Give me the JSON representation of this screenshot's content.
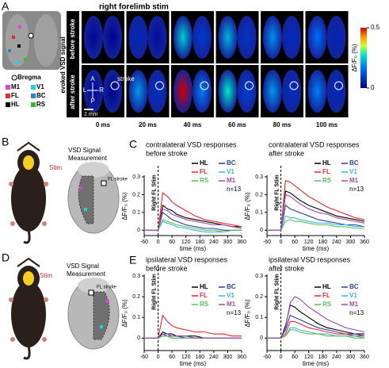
{
  "figure": {
    "panel_a": {
      "label": "A",
      "title": "right forelimb stim",
      "side_label": "evoked VSD signal",
      "row_labels": [
        "before stroke",
        "after stroke"
      ],
      "times": [
        "0 ms",
        "20 ms",
        "40 ms",
        "60 ms",
        "80 ms",
        "100 ms"
      ],
      "legend": [
        "Bregma",
        "M1",
        "V1",
        "FL",
        "BC",
        "HL",
        "RS"
      ],
      "colorbar": {
        "lim": [
          0,
          0.5
        ],
        "ticks": [
          0,
          0.5
        ],
        "label": "ΔF/F₀ (%)"
      },
      "stroke": "stroke",
      "scale": "2 mm",
      "axes": [
        "A",
        "P",
        "L",
        "R"
      ]
    },
    "panel_b": {
      "label": "B",
      "stim": "Stim",
      "measure": [
        "VSD Signal",
        "Measurement"
      ],
      "stroke": "FL stroke"
    },
    "panel_c": {
      "label": "C"
    },
    "panel_d": {
      "label": "D",
      "stim": "Stim",
      "measure": [
        "VSD Signal",
        "Measurement"
      ],
      "stroke": "FL stroke"
    },
    "panel_e": {
      "label": "E"
    }
  },
  "chart_data": [
    {
      "type": "line",
      "title": "contralateral VSD responses",
      "subtitle": "before stroke",
      "x_label": "time (ms)",
      "y_label": "ΔF/F₀ (%)",
      "stim_label": "Right FL Stim",
      "sample_size": "n=13",
      "x": [
        -60,
        -30,
        0,
        20,
        40,
        60,
        80,
        120,
        160,
        200,
        240,
        280,
        320,
        360
      ],
      "xlim": [
        -60,
        360
      ],
      "xticks": [
        -60,
        0,
        60,
        120,
        180,
        240,
        300,
        360
      ],
      "ylim": [
        -0.03,
        0.3
      ],
      "yticks": [
        0,
        0.1,
        0.2,
        0.3
      ],
      "series": [
        {
          "name": "HL",
          "color": "#000000",
          "values": [
            0,
            0,
            0,
            0.14,
            0.12,
            0.11,
            0.09,
            0.07,
            0.06,
            0.05,
            0.04,
            0.03,
            0.02,
            0.02
          ]
        },
        {
          "name": "BC",
          "color": "#2b3f9e",
          "values": [
            0,
            0,
            0,
            0.1,
            0.08,
            0.06,
            0.05,
            0.03,
            0.02,
            0.01,
            0.01,
            0,
            0,
            0
          ]
        },
        {
          "name": "FL",
          "color": "#e8262b",
          "values": [
            0,
            0,
            0,
            0.21,
            0.19,
            0.16,
            0.14,
            0.11,
            0.08,
            0.06,
            0.05,
            0.04,
            0.03,
            0.02
          ]
        },
        {
          "name": "V1",
          "color": "#3bb6e0",
          "values": [
            0,
            0,
            0,
            0.05,
            0.04,
            0.03,
            0.02,
            0.01,
            0,
            -0.01,
            -0.01,
            -0.01,
            0,
            0
          ]
        },
        {
          "name": "RS",
          "color": "#5cbf5a",
          "values": [
            0,
            0,
            0,
            0.06,
            0.05,
            0.04,
            0.03,
            0.02,
            0.01,
            0,
            0,
            -0.01,
            0,
            0
          ]
        },
        {
          "name": "M1",
          "color": "#a24aa8",
          "values": [
            0,
            0,
            0,
            0.12,
            0.11,
            0.09,
            0.08,
            0.06,
            0.05,
            0.04,
            0.03,
            0.03,
            0.02,
            0.01
          ]
        }
      ]
    },
    {
      "type": "line",
      "title": "contralateral VSD responses",
      "subtitle": "after stroke",
      "x_label": "time (ms)",
      "y_label": "ΔF/F₀ (%)",
      "stim_label": "Right FL Stim",
      "sample_size": "n=13",
      "x": [
        -60,
        -30,
        0,
        20,
        40,
        60,
        80,
        120,
        160,
        200,
        240,
        280,
        320,
        360
      ],
      "xlim": [
        -60,
        360
      ],
      "xticks": [
        -60,
        0,
        60,
        120,
        180,
        240,
        300,
        360
      ],
      "ylim": [
        -0.03,
        0.3
      ],
      "yticks": [
        0,
        0.1,
        0.2,
        0.3
      ],
      "series": [
        {
          "name": "HL",
          "color": "#000000",
          "values": [
            0,
            0,
            0,
            0.22,
            0.21,
            0.19,
            0.17,
            0.14,
            0.12,
            0.1,
            0.08,
            0.07,
            0.06,
            0.05
          ]
        },
        {
          "name": "BC",
          "color": "#2b3f9e",
          "values": [
            0,
            0,
            0,
            0.14,
            0.12,
            0.11,
            0.1,
            0.08,
            0.06,
            0.05,
            0.04,
            0.03,
            0.03,
            0.02
          ]
        },
        {
          "name": "FL",
          "color": "#e8262b",
          "values": [
            0,
            0,
            0,
            0.28,
            0.27,
            0.25,
            0.23,
            0.19,
            0.16,
            0.13,
            0.11,
            0.09,
            0.07,
            0.06
          ]
        },
        {
          "name": "V1",
          "color": "#3bb6e0",
          "values": [
            0,
            0,
            0,
            0.08,
            0.07,
            0.07,
            0.06,
            0.05,
            0.04,
            0.04,
            0.03,
            0.03,
            0.02,
            0.02
          ]
        },
        {
          "name": "RS",
          "color": "#5cbf5a",
          "values": [
            0,
            0,
            0,
            0.05,
            0.06,
            0.05,
            0.05,
            0.04,
            0.03,
            0.03,
            0.02,
            0.02,
            0.01,
            0.01
          ]
        },
        {
          "name": "M1",
          "color": "#a24aa8",
          "values": [
            0,
            0,
            0,
            0.2,
            0.19,
            0.17,
            0.15,
            0.12,
            0.1,
            0.09,
            0.07,
            0.06,
            0.05,
            0.04
          ]
        }
      ]
    },
    {
      "type": "line",
      "title": "ipsilateral VSD responses",
      "subtitle": "before stroke",
      "x_label": "time (ms)",
      "y_label": "ΔF/F₀ (%)",
      "stim_label": "Right FL Stim",
      "sample_size": "n=13",
      "x": [
        -60,
        -30,
        0,
        20,
        40,
        60,
        80,
        120,
        160,
        200,
        240,
        280,
        320,
        360
      ],
      "xlim": [
        -60,
        360
      ],
      "xticks": [
        -60,
        0,
        60,
        120,
        180,
        240,
        300,
        360
      ],
      "ylim": [
        -0.06,
        0.3
      ],
      "yticks": [
        0,
        0.1,
        0.2,
        0.3
      ],
      "series": [
        {
          "name": "HL",
          "color": "#000000",
          "values": [
            0,
            0,
            0,
            0.03,
            0.02,
            0.02,
            0.01,
            0.01,
            0.01,
            0,
            0,
            0,
            0,
            0
          ]
        },
        {
          "name": "BC",
          "color": "#2b3f9e",
          "values": [
            0,
            0,
            0,
            0.02,
            0.01,
            0.01,
            0.01,
            0,
            0,
            0,
            0,
            0,
            0,
            0
          ]
        },
        {
          "name": "FL",
          "color": "#e8262b",
          "values": [
            0,
            0,
            0,
            0.11,
            0.08,
            0.06,
            0.05,
            0.04,
            0.03,
            0.03,
            0.02,
            0.02,
            0.01,
            0.01
          ]
        },
        {
          "name": "V1",
          "color": "#3bb6e0",
          "values": [
            0,
            0,
            0,
            0.01,
            0.01,
            0,
            0,
            0,
            0,
            0,
            0,
            0,
            0,
            0
          ]
        },
        {
          "name": "RS",
          "color": "#5cbf5a",
          "values": [
            0,
            0,
            0,
            0.01,
            0.01,
            0,
            0,
            0,
            0,
            0,
            0,
            0,
            0,
            0
          ]
        },
        {
          "name": "M1",
          "color": "#a24aa8",
          "values": [
            0,
            0,
            0,
            0.02,
            0.02,
            0.01,
            0.01,
            0.01,
            0,
            0,
            0,
            0,
            0,
            0
          ]
        }
      ]
    },
    {
      "type": "line",
      "title": "ipsilateral VSD responses",
      "subtitle": "after stroke",
      "x_label": "time (ms)",
      "y_label": "ΔF/F₀ (%)",
      "stim_label": "Right FL Stim",
      "sample_size": "n=13",
      "x": [
        -60,
        -30,
        0,
        20,
        40,
        60,
        80,
        120,
        160,
        200,
        240,
        280,
        320,
        360
      ],
      "xlim": [
        -60,
        360
      ],
      "xticks": [
        -60,
        0,
        60,
        120,
        180,
        240,
        300,
        360
      ],
      "ylim": [
        -0.06,
        0.3
      ],
      "yticks": [
        0,
        0.1,
        0.2,
        0.3
      ],
      "series": [
        {
          "name": "HL",
          "color": "#000000",
          "values": [
            0,
            0,
            0,
            0.06,
            0.16,
            0.15,
            0.13,
            0.1,
            0.07,
            0.05,
            0.04,
            0.03,
            0.02,
            0.02
          ]
        },
        {
          "name": "BC",
          "color": "#2b3f9e",
          "values": [
            0,
            0,
            0,
            0.04,
            0.11,
            0.1,
            0.09,
            0.07,
            0.05,
            0.04,
            0.03,
            0.02,
            0.02,
            0.01
          ]
        },
        {
          "name": "FL",
          "color": "#e8262b",
          "values": [
            0,
            0,
            0,
            0.02,
            0.08,
            0.08,
            0.07,
            0.05,
            0.04,
            0.03,
            0.02,
            0.02,
            0.01,
            0.01
          ]
        },
        {
          "name": "V1",
          "color": "#3bb6e0",
          "values": [
            0,
            0,
            0,
            0.01,
            0.05,
            0.05,
            0.04,
            0.03,
            0.02,
            0.02,
            0.01,
            0.01,
            0.01,
            0
          ]
        },
        {
          "name": "RS",
          "color": "#5cbf5a",
          "values": [
            0,
            0,
            0,
            0.01,
            0.04,
            0.04,
            0.03,
            0.02,
            0.02,
            0.01,
            0.01,
            0.01,
            0,
            0
          ]
        },
        {
          "name": "M1",
          "color": "#a24aa8",
          "values": [
            0,
            0,
            0,
            0.05,
            0.17,
            0.2,
            0.19,
            0.15,
            0.12,
            0.09,
            0.07,
            0.05,
            0.04,
            0.03
          ]
        }
      ]
    }
  ]
}
